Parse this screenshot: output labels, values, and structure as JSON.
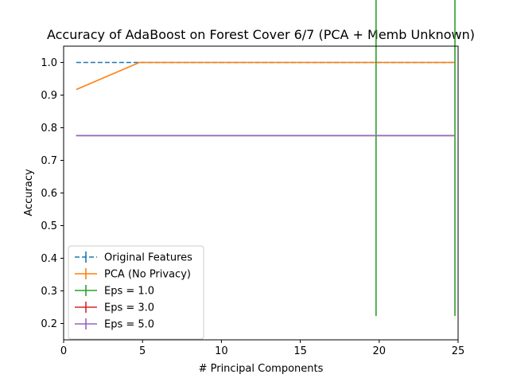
{
  "chart_data": {
    "type": "line",
    "title": "Accuracy of AdaBoost on Forest Cover 6/7 (PCA + Memb Unknown)",
    "xlabel": "# Principal Components",
    "ylabel": "Accuracy",
    "xlim": [
      0,
      25
    ],
    "ylim": [
      0.15,
      1.05
    ],
    "xticks": [
      0,
      5,
      10,
      15,
      20,
      25
    ],
    "xtick_labels": [
      "0",
      "5",
      "10",
      "15",
      "20",
      "25"
    ],
    "yticks": [
      0.2,
      0.3,
      0.4,
      0.5,
      0.6,
      0.7,
      0.8,
      0.9,
      1.0
    ],
    "ytick_labels": [
      "0.2",
      "0.3",
      "0.4",
      "0.5",
      "0.6",
      "0.7",
      "0.8",
      "0.9",
      "1.0"
    ],
    "grid": false,
    "legend_position": "lower-left",
    "x": [
      0.8,
      4.8,
      9.8,
      14.8,
      19.8,
      24.8
    ],
    "series": [
      {
        "name": "Original Features",
        "color": "#1f77b4",
        "dash": true,
        "values": [
          1.0,
          1.0,
          1.0,
          1.0,
          1.0,
          1.0
        ],
        "errors": [
          0,
          0,
          0,
          0,
          0,
          0
        ]
      },
      {
        "name": "PCA (No Privacy)",
        "color": "#ff7f0e",
        "dash": false,
        "values": [
          0.917,
          1.0,
          1.0,
          1.0,
          1.0,
          1.0
        ],
        "errors": [
          0,
          0,
          0,
          0,
          0,
          0
        ]
      },
      {
        "name": "Eps = 1.0",
        "color": "#2ca02c",
        "dash": false,
        "values": [
          0.776,
          0.776,
          0.776,
          0.776,
          0.776,
          0.776
        ],
        "errors": [
          0,
          0,
          0,
          0,
          0.553,
          0.553
        ]
      },
      {
        "name": "Eps = 3.0",
        "color": "#d62728",
        "dash": false,
        "values": [
          0.776,
          0.776,
          0.776,
          0.776,
          0.776,
          0.776
        ],
        "errors": [
          0,
          0,
          0,
          0,
          0,
          0
        ]
      },
      {
        "name": "Eps = 5.0",
        "color": "#9467bd",
        "dash": false,
        "values": [
          0.776,
          0.776,
          0.776,
          0.776,
          0.776,
          0.776
        ],
        "errors": [
          0,
          0,
          0,
          0,
          0,
          0
        ]
      }
    ]
  }
}
